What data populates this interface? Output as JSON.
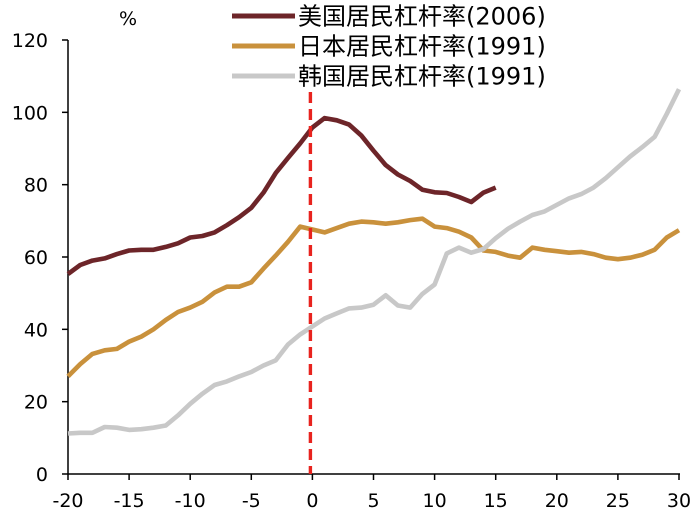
{
  "chart_data": {
    "type": "line",
    "title": "",
    "xlabel": "",
    "ylabel": "%",
    "xlim": [
      -20,
      30
    ],
    "ylim": [
      0,
      120
    ],
    "x_ticks": [
      -20,
      -15,
      -10,
      -5,
      0,
      5,
      10,
      15,
      20,
      25,
      30
    ],
    "x_tick_labels": [
      "-20",
      "-15",
      "-10",
      "-5",
      "0",
      "5",
      "10",
      "15",
      "20",
      "25",
      "30"
    ],
    "y_ticks": [
      0,
      20,
      40,
      60,
      80,
      100,
      120
    ],
    "y_tick_labels": [
      "0",
      "20",
      "40",
      "60",
      "80",
      "100",
      "120"
    ],
    "grid": false,
    "legend_position": "top",
    "reference_line": {
      "x": 0,
      "color": "#E8231E"
    },
    "series": [
      {
        "name": "美国居民杠杆率(2006)",
        "color": "#6D2529",
        "x": [
          -20,
          -19,
          -18,
          -17,
          -16,
          -15,
          -14,
          -13,
          -12,
          -11,
          -10,
          -9,
          -8,
          -7,
          -6,
          -5,
          -4,
          -3,
          -2,
          -1,
          0,
          1,
          2,
          3,
          4,
          5,
          6,
          7,
          8,
          9,
          10,
          11,
          12,
          13,
          14,
          15
        ],
        "values": [
          55.3,
          57.8,
          59.0,
          59.6,
          60.8,
          61.8,
          62.0,
          62.0,
          62.8,
          63.8,
          65.4,
          65.8,
          66.8,
          68.8,
          71.0,
          73.6,
          77.8,
          83.2,
          87.4,
          91.4,
          95.8,
          98.4,
          97.8,
          96.6,
          93.6,
          89.4,
          85.4,
          82.8,
          81.0,
          78.6,
          77.9,
          77.7,
          76.6,
          75.2,
          77.8,
          79.2
        ]
      },
      {
        "name": "日本居民杠杆率(1991)",
        "color": "#C9913C",
        "x": [
          -20,
          -19,
          -18,
          -17,
          -16,
          -15,
          -14,
          -13,
          -12,
          -11,
          -10,
          -9,
          -8,
          -7,
          -6,
          -5,
          -4,
          -3,
          -2,
          -1,
          0,
          1,
          2,
          3,
          4,
          5,
          6,
          7,
          8,
          9,
          10,
          11,
          12,
          13,
          14,
          15,
          16,
          17,
          18,
          19,
          20,
          21,
          22,
          23,
          24,
          25,
          26,
          27,
          28,
          29,
          30
        ],
        "values": [
          27.0,
          30.4,
          33.2,
          34.2,
          34.6,
          36.6,
          38.0,
          40.0,
          42.6,
          44.8,
          46.0,
          47.6,
          50.2,
          51.8,
          51.8,
          53.0,
          56.8,
          60.4,
          64.2,
          68.4,
          67.6,
          66.8,
          68.0,
          69.2,
          69.8,
          69.6,
          69.2,
          69.6,
          70.2,
          70.6,
          68.4,
          68.0,
          67.0,
          65.4,
          61.8,
          61.4,
          60.4,
          59.8,
          62.6,
          62.0,
          61.6,
          61.2,
          61.4,
          60.8,
          59.8,
          59.4,
          59.8,
          60.6,
          62.0,
          65.4,
          67.4
        ]
      },
      {
        "name": "韩国居民杠杆率(1991)",
        "color": "#C8C8C8",
        "x": [
          -20,
          -19,
          -18,
          -17,
          -16,
          -15,
          -14,
          -13,
          -12,
          -11,
          -10,
          -9,
          -8,
          -7,
          -6,
          -5,
          -4,
          -3,
          -2,
          -1,
          0,
          1,
          2,
          3,
          4,
          5,
          6,
          7,
          8,
          9,
          10,
          11,
          12,
          13,
          14,
          15,
          16,
          17,
          18,
          19,
          20,
          21,
          22,
          23,
          24,
          25,
          26,
          27,
          28,
          29,
          30
        ],
        "values": [
          11.2,
          11.4,
          11.4,
          13.0,
          12.8,
          12.2,
          12.4,
          12.8,
          13.4,
          16.2,
          19.4,
          22.2,
          24.6,
          25.6,
          27.0,
          28.2,
          30.0,
          31.4,
          35.8,
          38.6,
          40.8,
          43.0,
          44.4,
          45.8,
          46.0,
          46.8,
          49.4,
          46.6,
          46.0,
          49.8,
          52.4,
          61.0,
          62.6,
          61.2,
          62.2,
          65.2,
          67.8,
          69.8,
          71.6,
          72.6,
          74.4,
          76.2,
          77.4,
          79.2,
          81.8,
          84.8,
          87.8,
          90.4,
          93.2,
          99.6,
          106.4
        ]
      }
    ]
  }
}
